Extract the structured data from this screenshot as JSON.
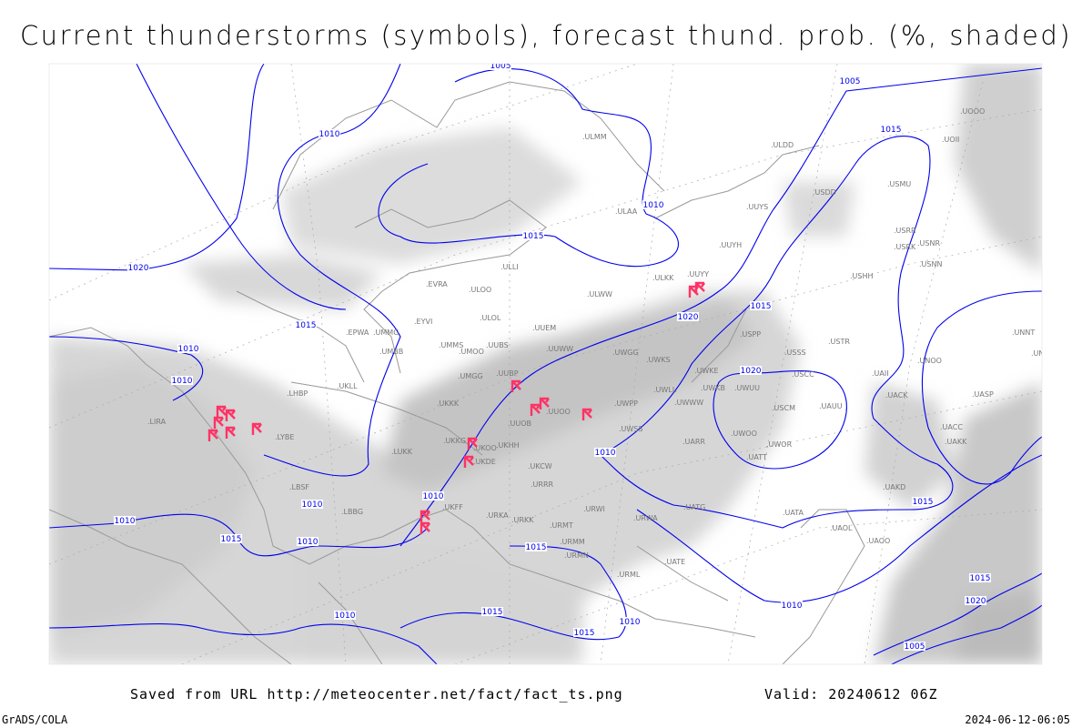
{
  "title": "Current thunderstorms (symbols), forecast thund. prob. (%, shaded)",
  "footer": {
    "saved": "Saved from URL http://meteocenter.net/fact/fact_ts.png",
    "valid": "Valid: 20240612 06Z",
    "software": "GrADS/COLA",
    "timestamp": "2024-06-12-06:05"
  },
  "colors": {
    "isobar": "#0000ee",
    "thunderstorm_symbol": "#ff3366",
    "probability_shading": "#c8c8c8",
    "coastline": "#999999",
    "station_label": "#777777"
  },
  "isobar_labels": [
    "1005",
    "1010",
    "1015",
    "1005",
    "1010",
    "1015",
    "1020",
    "1015",
    "1010",
    "1020",
    "1015",
    "1010",
    "1010",
    "1010",
    "1010",
    "1015",
    "1010",
    "1015",
    "1010",
    "1015",
    "1010",
    "1015",
    "1005",
    "1020",
    "1015",
    "1010",
    "1010",
    "1015",
    "1020"
  ],
  "stations": [
    "ULMM",
    "ULAA",
    "ULOL",
    "UUEM",
    "UUWW",
    "UWGG",
    "UWKS",
    "UMMS",
    "UMOO",
    "UUBS",
    "UMGG",
    "UUBP",
    "UKKK",
    "UUOO",
    "UUOB",
    "UKHH",
    "UKOO",
    "UKDE",
    "UKKG",
    "UKCW",
    "URRR",
    "LUKK",
    "ULLI",
    "EVRA",
    "ULOO",
    "ULWW",
    "ULKK",
    "UUYY",
    "UUYH",
    "UUYS",
    "EPWA",
    "UMMG",
    "UMBB",
    "EYVI",
    "UKLL",
    "LHBP",
    "LYBE",
    "LIRA",
    "LBSF",
    "LBBG",
    "UKFF",
    "URKA",
    "URKK",
    "URMT",
    "URWI",
    "URWA",
    "URMM",
    "URMN",
    "URML",
    "UATE",
    "UATG",
    "UATA",
    "UAOL",
    "UAOO",
    "UAKD",
    "UAKK",
    "UACC",
    "UACK",
    "UAII",
    "UASP",
    "UAUU",
    "USCM",
    "UWOO",
    "UWOR",
    "UATT",
    "UARR",
    "UWSS",
    "UWPP",
    "UWWW",
    "UWLL",
    "UWKE",
    "UWKB",
    "UWUU",
    "USSS",
    "USCC",
    "USTR",
    "USPP",
    "USHH",
    "USRR",
    "USRK",
    "USNR",
    "USNN",
    "USMU",
    "USDD",
    "ULDD",
    "UOOO",
    "UOII",
    "UNNT",
    "UNBB",
    "UNOO"
  ]
}
